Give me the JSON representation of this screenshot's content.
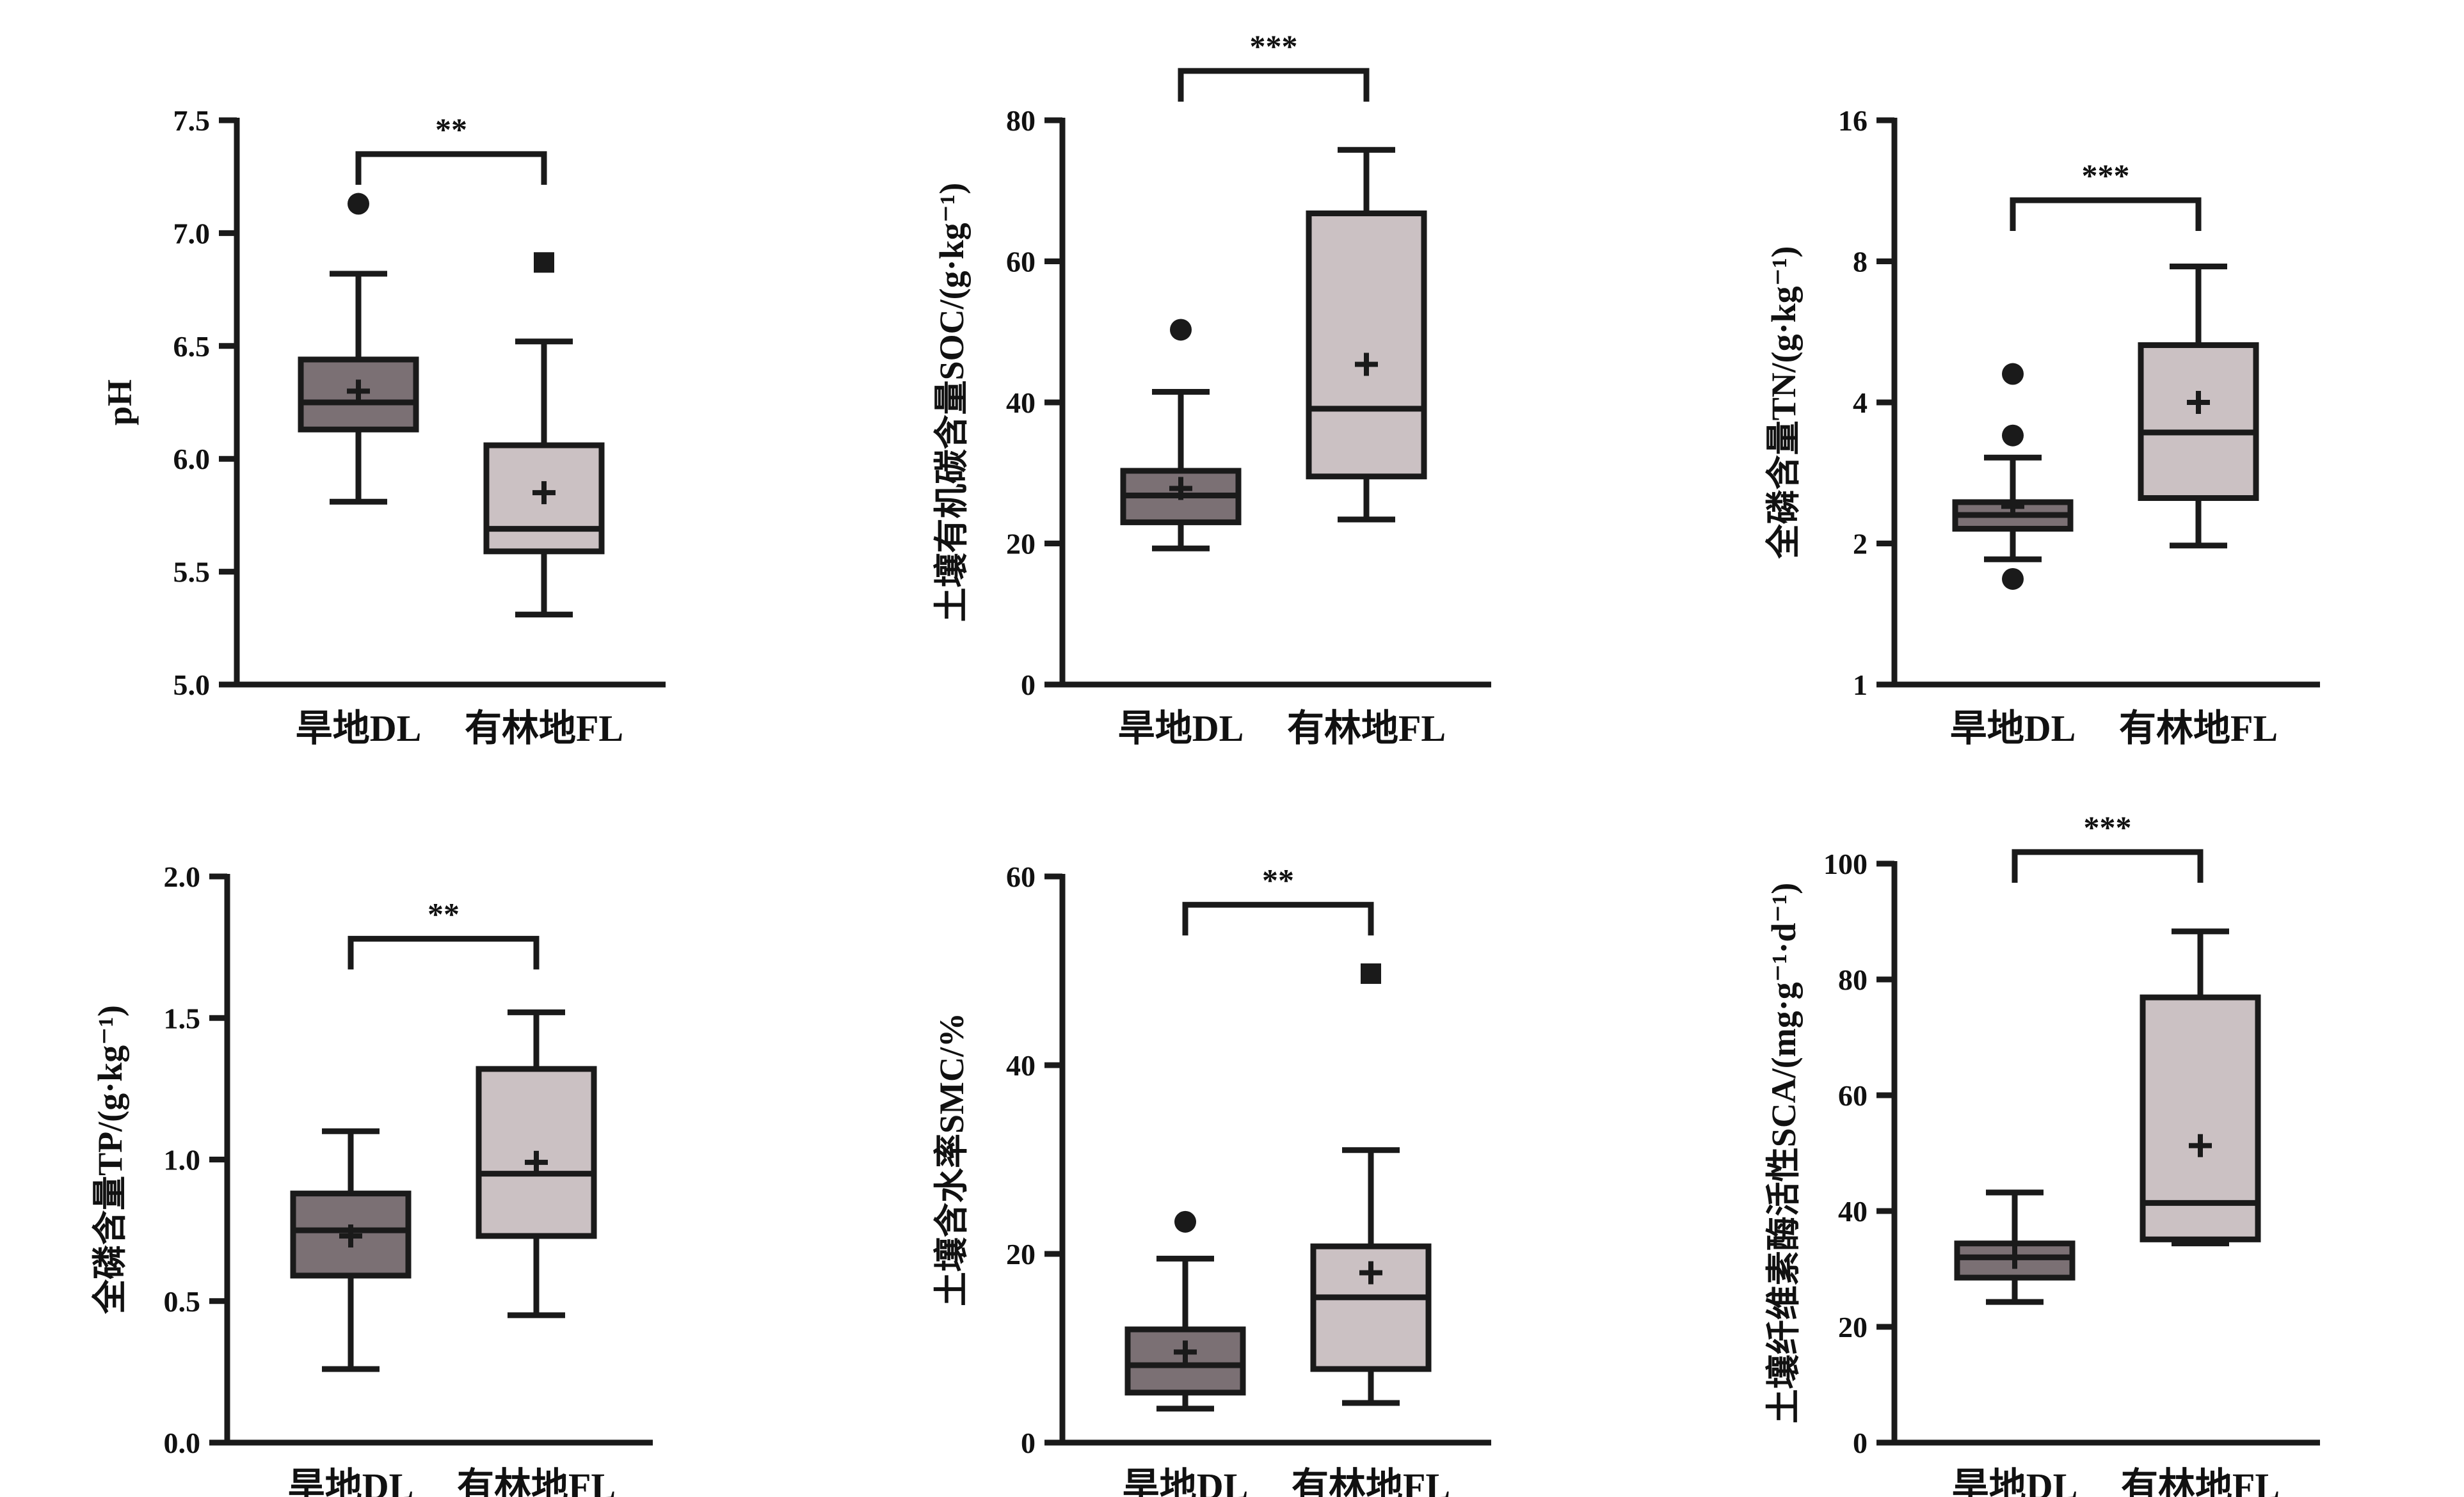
{
  "colors": {
    "dl_box": "#7b7074",
    "fl_box": "#cbc1c3",
    "line": "#1a1a1a"
  },
  "chart_data": [
    {
      "type": "box",
      "id": "ph",
      "ylabel": "pH",
      "categories": [
        "旱地DL",
        "有林地FL"
      ],
      "scale": "linear",
      "ylim": [
        5.0,
        7.5
      ],
      "yticks": [
        5.0,
        5.5,
        6.0,
        6.5,
        7.0,
        7.5
      ],
      "ytick_labels": [
        "5.0",
        "5.5",
        "6.0",
        "6.5",
        "7.0",
        "7.5"
      ],
      "significance": "**",
      "bracket_y": 7.35,
      "boxes": [
        {
          "name": "旱地DL",
          "min": 5.81,
          "q1": 6.13,
          "median": 6.25,
          "q3": 6.44,
          "max": 6.82,
          "mean": 6.3,
          "outliers": [
            7.13
          ],
          "outlier_marker": "circle"
        },
        {
          "name": "有林地FL",
          "min": 5.31,
          "q1": 5.59,
          "median": 5.69,
          "q3": 6.06,
          "max": 6.52,
          "mean": 5.85,
          "outliers": [
            6.87
          ],
          "outlier_marker": "square"
        }
      ]
    },
    {
      "type": "box",
      "id": "soc",
      "ylabel": "土壤有机碳含量SOC/(g·kg⁻¹)",
      "categories": [
        "旱地DL",
        "有林地FL"
      ],
      "scale": "linear",
      "ylim": [
        0,
        80
      ],
      "yticks": [
        0,
        20,
        40,
        60,
        80
      ],
      "ytick_labels": [
        "0",
        "20",
        "40",
        "60",
        "80"
      ],
      "significance": "***",
      "bracket_y": 87,
      "boxes": [
        {
          "name": "旱地DL",
          "min": 19.3,
          "q1": 23.0,
          "median": 26.8,
          "q3": 30.3,
          "max": 41.5,
          "mean": 27.8,
          "outliers": [
            50.3
          ],
          "outlier_marker": "circle"
        },
        {
          "name": "有林地FL",
          "min": 23.4,
          "q1": 29.5,
          "median": 39.1,
          "q3": 66.8,
          "max": 75.8,
          "mean": 45.4,
          "outliers": [],
          "outlier_marker": "square"
        }
      ]
    },
    {
      "type": "box",
      "id": "tn",
      "ylabel": "全磷含量TN/(g·kg⁻¹)",
      "categories": [
        "旱地DL",
        "有林地FL"
      ],
      "scale": "log2",
      "ylim": [
        1,
        16
      ],
      "yticks": [
        1,
        2,
        4,
        8,
        16
      ],
      "ytick_labels": [
        "1",
        "2",
        "4",
        "8",
        "16"
      ],
      "significance": "***",
      "bracket_y": 10.8,
      "boxes": [
        {
          "name": "旱地DL",
          "min": 1.85,
          "q1": 2.15,
          "median": 2.3,
          "q3": 2.45,
          "max": 3.05,
          "mean": 2.4,
          "outliers": [
            4.6,
            3.4,
            1.68
          ],
          "outlier_marker": "circle"
        },
        {
          "name": "有林地FL",
          "min": 1.98,
          "q1": 2.5,
          "median": 3.45,
          "q3": 5.3,
          "max": 7.8,
          "mean": 4.0,
          "outliers": [],
          "outlier_marker": "square"
        }
      ]
    },
    {
      "type": "box",
      "id": "tp",
      "ylabel": "全磷含量TP/(g·kg⁻¹)",
      "categories": [
        "旱地DL",
        "有林地FL"
      ],
      "scale": "linear",
      "ylim": [
        0.0,
        2.0
      ],
      "yticks": [
        0.0,
        0.5,
        1.0,
        1.5,
        2.0
      ],
      "ytick_labels": [
        "0.0",
        "0.5",
        "1.0",
        "1.5",
        "2.0"
      ],
      "significance": "**",
      "bracket_y": 1.78,
      "boxes": [
        {
          "name": "旱地DL",
          "min": 0.26,
          "q1": 0.59,
          "median": 0.75,
          "q3": 0.88,
          "max": 1.1,
          "mean": 0.73,
          "outliers": [],
          "outlier_marker": "circle"
        },
        {
          "name": "有林地FL",
          "min": 0.45,
          "q1": 0.73,
          "median": 0.95,
          "q3": 1.32,
          "max": 1.52,
          "mean": 0.99,
          "outliers": [],
          "outlier_marker": "square"
        }
      ]
    },
    {
      "type": "box",
      "id": "smc",
      "ylabel": "土壤含水率SMC/%",
      "categories": [
        "旱地DL",
        "有林地FL"
      ],
      "scale": "linear",
      "ylim": [
        0,
        60
      ],
      "yticks": [
        0,
        20,
        40,
        60
      ],
      "ytick_labels": [
        "0",
        "20",
        "40",
        "60"
      ],
      "significance": "**",
      "bracket_y": 57,
      "boxes": [
        {
          "name": "旱地DL",
          "min": 3.6,
          "q1": 5.3,
          "median": 8.2,
          "q3": 12.0,
          "max": 19.5,
          "mean": 9.6,
          "outliers": [
            23.4
          ],
          "outlier_marker": "circle"
        },
        {
          "name": "有林地FL",
          "min": 4.2,
          "q1": 7.8,
          "median": 15.4,
          "q3": 20.8,
          "max": 31.0,
          "mean": 18.0,
          "outliers": [
            49.7
          ],
          "outlier_marker": "square"
        }
      ]
    },
    {
      "type": "box",
      "id": "sca",
      "ylabel": "土壤纤维素酶活性SCA/(mg·g⁻¹·d⁻¹)",
      "categories": [
        "旱地DL",
        "有林地FL"
      ],
      "scale": "linear",
      "ylim": [
        0,
        100
      ],
      "yticks": [
        0,
        20,
        40,
        60,
        80,
        100
      ],
      "ytick_labels": [
        "0",
        "20",
        "40",
        "60",
        "80",
        "100"
      ],
      "significance": "***",
      "bracket_y": 102,
      "boxes": [
        {
          "name": "旱地DL",
          "min": 24.3,
          "q1": 28.5,
          "median": 32.0,
          "q3": 34.4,
          "max": 43.2,
          "mean": 32.0,
          "outliers": [],
          "outlier_marker": "circle"
        },
        {
          "name": "有林地FL",
          "min": 34.4,
          "q1": 35.1,
          "median": 41.4,
          "q3": 76.9,
          "max": 88.3,
          "mean": 51.3,
          "outliers": [],
          "outlier_marker": "square"
        }
      ]
    }
  ]
}
